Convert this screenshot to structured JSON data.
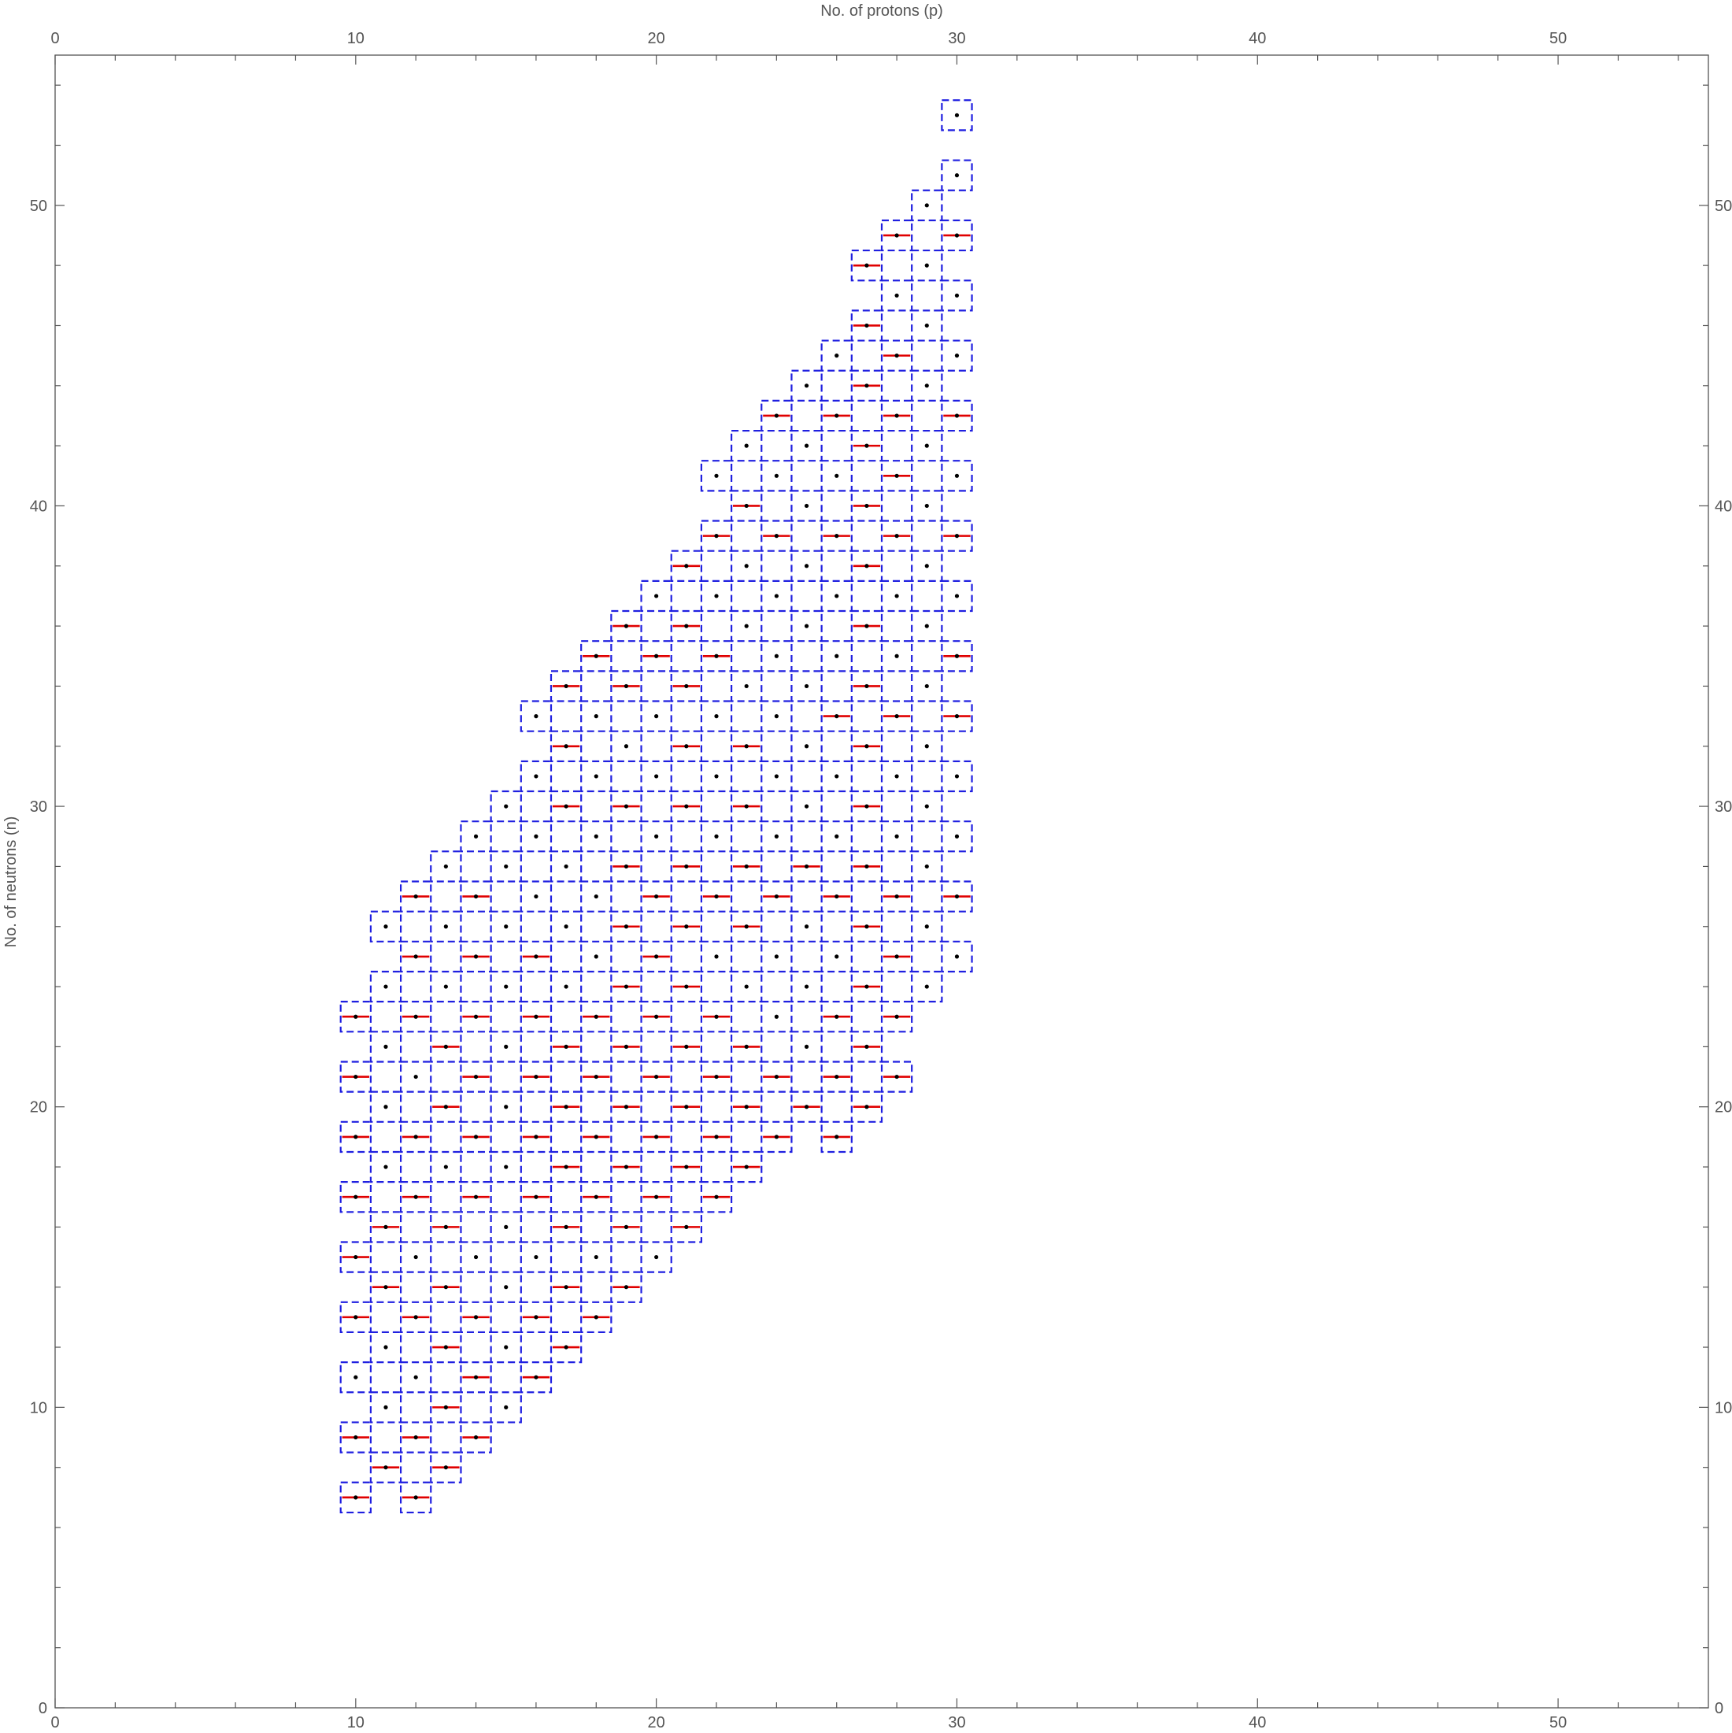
{
  "chart_data": {
    "type": "scatter",
    "title": "",
    "xlabel": "No. of protons (p)",
    "ylabel": "No. of neutrons (n)",
    "xlim": [
      0,
      55
    ],
    "ylim": [
      0,
      55
    ],
    "x_ticks": [
      0,
      10,
      20,
      30,
      40,
      50
    ],
    "y_ticks": [
      0,
      10,
      20,
      30,
      40,
      50
    ],
    "grid": false,
    "frame": "ticks on all four sides",
    "colors": {
      "box": "#1f1fe0",
      "point": "#000000",
      "bar": "#e00000",
      "axis": "#555555"
    },
    "series": [
      {
        "marker": "dashed-box",
        "description_ref": "boxes",
        "columns": [
          {
            "p": 10,
            "n": [
              7,
              9,
              11,
              13,
              15,
              17,
              19,
              21,
              23
            ]
          },
          {
            "p": 11,
            "n": [
              8,
              10,
              12,
              14,
              16,
              18,
              20,
              22,
              24,
              26
            ]
          },
          {
            "p": 12,
            "n": [
              7,
              9,
              11,
              13,
              15,
              17,
              19,
              21,
              23,
              25,
              27
            ]
          },
          {
            "p": 13,
            "n": [
              8,
              10,
              12,
              14,
              16,
              18,
              20,
              22,
              24,
              26,
              28
            ]
          },
          {
            "p": 14,
            "n": [
              9,
              11,
              13,
              15,
              17,
              19,
              21,
              23,
              25,
              27,
              29
            ]
          },
          {
            "p": 15,
            "n": [
              10,
              12,
              14,
              16,
              18,
              20,
              22,
              24,
              26,
              28,
              30
            ]
          },
          {
            "p": 16,
            "n": [
              11,
              13,
              15,
              17,
              19,
              21,
              23,
              25,
              27,
              29,
              31,
              33
            ]
          },
          {
            "p": 17,
            "n": [
              12,
              14,
              16,
              18,
              20,
              22,
              24,
              26,
              28,
              30,
              32,
              34
            ]
          },
          {
            "p": 18,
            "n": [
              13,
              15,
              17,
              19,
              21,
              23,
              25,
              27,
              29,
              31,
              33,
              35
            ]
          },
          {
            "p": 19,
            "n": [
              14,
              16,
              18,
              20,
              22,
              24,
              26,
              28,
              30,
              32,
              34,
              36
            ]
          },
          {
            "p": 20,
            "n": [
              15,
              17,
              19,
              21,
              23,
              25,
              27,
              29,
              31,
              33,
              35,
              37
            ]
          },
          {
            "p": 21,
            "n": [
              16,
              18,
              20,
              22,
              24,
              26,
              28,
              30,
              32,
              34,
              36,
              38
            ]
          },
          {
            "p": 22,
            "n": [
              17,
              19,
              21,
              23,
              25,
              27,
              29,
              31,
              33,
              35,
              37,
              39,
              41
            ]
          },
          {
            "p": 23,
            "n": [
              18,
              20,
              22,
              24,
              26,
              28,
              30,
              32,
              34,
              36,
              38,
              40,
              42
            ]
          },
          {
            "p": 24,
            "n": [
              19,
              21,
              23,
              25,
              27,
              29,
              31,
              33,
              35,
              37,
              39,
              41,
              43
            ]
          },
          {
            "p": 25,
            "n": [
              20,
              22,
              24,
              26,
              28,
              30,
              32,
              34,
              36,
              38,
              40,
              42,
              44
            ]
          },
          {
            "p": 26,
            "n": [
              19,
              21,
              23,
              25,
              27,
              29,
              31,
              33,
              35,
              37,
              39,
              41,
              43,
              45
            ]
          },
          {
            "p": 27,
            "n": [
              20,
              22,
              24,
              26,
              28,
              30,
              32,
              34,
              36,
              38,
              40,
              42,
              44,
              46,
              48
            ]
          },
          {
            "p": 28,
            "n": [
              21,
              23,
              25,
              27,
              29,
              31,
              33,
              35,
              37,
              39,
              41,
              43,
              45,
              47,
              49
            ]
          },
          {
            "p": 29,
            "n": [
              24,
              26,
              28,
              30,
              32,
              34,
              36,
              38,
              40,
              42,
              44,
              46,
              48,
              50
            ]
          },
          {
            "p": 30,
            "n": [
              25,
              27,
              29,
              31,
              33,
              35,
              37,
              39,
              41,
              43,
              45,
              47,
              49,
              51,
              53
            ]
          }
        ]
      },
      {
        "marker": "black-dot",
        "description_ref": "points",
        "same_as": "boxes"
      },
      {
        "marker": "red-bar",
        "description_ref": "bars",
        "points": [
          [
            10,
            7
          ],
          [
            10,
            9
          ],
          [
            10,
            13
          ],
          [
            10,
            15
          ],
          [
            10,
            17
          ],
          [
            10,
            19
          ],
          [
            10,
            21
          ],
          [
            10,
            23
          ],
          [
            11,
            8
          ],
          [
            11,
            14
          ],
          [
            11,
            16
          ],
          [
            12,
            7
          ],
          [
            12,
            9
          ],
          [
            12,
            13
          ],
          [
            12,
            17
          ],
          [
            12,
            19
          ],
          [
            12,
            23
          ],
          [
            12,
            25
          ],
          [
            12,
            27
          ],
          [
            13,
            8
          ],
          [
            13,
            10
          ],
          [
            13,
            12
          ],
          [
            13,
            14
          ],
          [
            13,
            16
          ],
          [
            13,
            20
          ],
          [
            13,
            22
          ],
          [
            14,
            9
          ],
          [
            14,
            11
          ],
          [
            14,
            13
          ],
          [
            14,
            17
          ],
          [
            14,
            19
          ],
          [
            14,
            21
          ],
          [
            14,
            23
          ],
          [
            14,
            25
          ],
          [
            14,
            27
          ],
          [
            16,
            11
          ],
          [
            16,
            13
          ],
          [
            16,
            17
          ],
          [
            16,
            19
          ],
          [
            16,
            21
          ],
          [
            16,
            23
          ],
          [
            16,
            25
          ],
          [
            17,
            12
          ],
          [
            17,
            14
          ],
          [
            17,
            16
          ],
          [
            17,
            18
          ],
          [
            17,
            20
          ],
          [
            17,
            22
          ],
          [
            17,
            30
          ],
          [
            17,
            32
          ],
          [
            17,
            34
          ],
          [
            18,
            13
          ],
          [
            18,
            17
          ],
          [
            18,
            19
          ],
          [
            18,
            21
          ],
          [
            18,
            23
          ],
          [
            18,
            35
          ],
          [
            19,
            14
          ],
          [
            19,
            16
          ],
          [
            19,
            18
          ],
          [
            19,
            20
          ],
          [
            19,
            22
          ],
          [
            19,
            24
          ],
          [
            19,
            26
          ],
          [
            19,
            28
          ],
          [
            19,
            30
          ],
          [
            19,
            34
          ],
          [
            19,
            36
          ],
          [
            20,
            17
          ],
          [
            20,
            19
          ],
          [
            20,
            21
          ],
          [
            20,
            23
          ],
          [
            20,
            25
          ],
          [
            20,
            27
          ],
          [
            20,
            35
          ],
          [
            21,
            16
          ],
          [
            21,
            18
          ],
          [
            21,
            20
          ],
          [
            21,
            22
          ],
          [
            21,
            24
          ],
          [
            21,
            26
          ],
          [
            21,
            28
          ],
          [
            21,
            30
          ],
          [
            21,
            32
          ],
          [
            21,
            34
          ],
          [
            21,
            36
          ],
          [
            21,
            38
          ],
          [
            22,
            17
          ],
          [
            22,
            19
          ],
          [
            22,
            21
          ],
          [
            22,
            23
          ],
          [
            22,
            27
          ],
          [
            22,
            35
          ],
          [
            22,
            39
          ],
          [
            23,
            18
          ],
          [
            23,
            20
          ],
          [
            23,
            22
          ],
          [
            23,
            26
          ],
          [
            23,
            28
          ],
          [
            23,
            30
          ],
          [
            23,
            32
          ],
          [
            23,
            40
          ],
          [
            24,
            19
          ],
          [
            24,
            21
          ],
          [
            24,
            27
          ],
          [
            24,
            39
          ],
          [
            24,
            43
          ],
          [
            25,
            20
          ],
          [
            25,
            28
          ],
          [
            26,
            19
          ],
          [
            26,
            21
          ],
          [
            26,
            23
          ],
          [
            26,
            27
          ],
          [
            26,
            33
          ],
          [
            26,
            39
          ],
          [
            26,
            43
          ],
          [
            27,
            20
          ],
          [
            27,
            22
          ],
          [
            27,
            24
          ],
          [
            27,
            26
          ],
          [
            27,
            28
          ],
          [
            27,
            30
          ],
          [
            27,
            32
          ],
          [
            27,
            34
          ],
          [
            27,
            36
          ],
          [
            27,
            38
          ],
          [
            27,
            40
          ],
          [
            27,
            42
          ],
          [
            27,
            44
          ],
          [
            27,
            46
          ],
          [
            27,
            48
          ],
          [
            28,
            21
          ],
          [
            28,
            23
          ],
          [
            28,
            25
          ],
          [
            28,
            27
          ],
          [
            28,
            33
          ],
          [
            28,
            39
          ],
          [
            28,
            41
          ],
          [
            28,
            43
          ],
          [
            28,
            45
          ],
          [
            28,
            49
          ],
          [
            30,
            27
          ],
          [
            30,
            33
          ],
          [
            30,
            35
          ],
          [
            30,
            39
          ],
          [
            30,
            43
          ],
          [
            30,
            49
          ]
        ]
      }
    ]
  }
}
